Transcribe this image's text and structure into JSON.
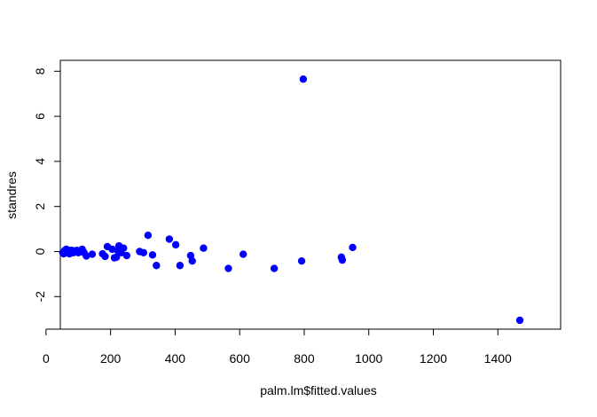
{
  "chart_data": {
    "type": "scatter",
    "title": "",
    "xlabel": "palm.lm$fitted.values",
    "ylabel": "standres",
    "xlim": [
      0,
      1500
    ],
    "ylim": [
      -3,
      8
    ],
    "xticks": [
      0,
      200,
      400,
      600,
      800,
      1000,
      1200,
      1400
    ],
    "yticks": [
      -2,
      0,
      2,
      4,
      6,
      8
    ],
    "ytick_labels": [
      "-2",
      "0",
      "2",
      "4",
      "6",
      "8"
    ],
    "grid": false,
    "point_color": "#0000ff",
    "points": [
      {
        "x": 52,
        "y": -0.05
      },
      {
        "x": 55,
        "y": -0.1
      },
      {
        "x": 58,
        "y": 0.05
      },
      {
        "x": 60,
        "y": -0.05
      },
      {
        "x": 63,
        "y": 0.1
      },
      {
        "x": 66,
        "y": -0.05
      },
      {
        "x": 70,
        "y": 0.05
      },
      {
        "x": 73,
        "y": -0.1
      },
      {
        "x": 76,
        "y": 0.0
      },
      {
        "x": 80,
        "y": 0.05
      },
      {
        "x": 85,
        "y": -0.05
      },
      {
        "x": 90,
        "y": 0.0
      },
      {
        "x": 95,
        "y": 0.05
      },
      {
        "x": 100,
        "y": -0.05
      },
      {
        "x": 105,
        "y": 0.0
      },
      {
        "x": 112,
        "y": 0.1
      },
      {
        "x": 118,
        "y": -0.05
      },
      {
        "x": 125,
        "y": -0.2
      },
      {
        "x": 143,
        "y": -0.12
      },
      {
        "x": 175,
        "y": -0.1
      },
      {
        "x": 183,
        "y": -0.22
      },
      {
        "x": 190,
        "y": 0.22
      },
      {
        "x": 205,
        "y": 0.1
      },
      {
        "x": 212,
        "y": -0.28
      },
      {
        "x": 218,
        "y": -0.25
      },
      {
        "x": 222,
        "y": 0.05
      },
      {
        "x": 226,
        "y": 0.25
      },
      {
        "x": 233,
        "y": -0.05
      },
      {
        "x": 240,
        "y": 0.15
      },
      {
        "x": 250,
        "y": -0.18
      },
      {
        "x": 290,
        "y": 0.0
      },
      {
        "x": 302,
        "y": -0.05
      },
      {
        "x": 316,
        "y": 0.72
      },
      {
        "x": 330,
        "y": -0.15
      },
      {
        "x": 342,
        "y": -0.62
      },
      {
        "x": 382,
        "y": 0.55
      },
      {
        "x": 402,
        "y": 0.3
      },
      {
        "x": 415,
        "y": -0.62
      },
      {
        "x": 448,
        "y": -0.18
      },
      {
        "x": 453,
        "y": -0.42
      },
      {
        "x": 488,
        "y": 0.15
      },
      {
        "x": 565,
        "y": -0.75
      },
      {
        "x": 611,
        "y": -0.12
      },
      {
        "x": 707,
        "y": -0.75
      },
      {
        "x": 792,
        "y": -0.42
      },
      {
        "x": 797,
        "y": 7.65
      },
      {
        "x": 915,
        "y": -0.25
      },
      {
        "x": 918,
        "y": -0.38
      },
      {
        "x": 950,
        "y": 0.18
      },
      {
        "x": 1468,
        "y": -3.05
      }
    ]
  }
}
